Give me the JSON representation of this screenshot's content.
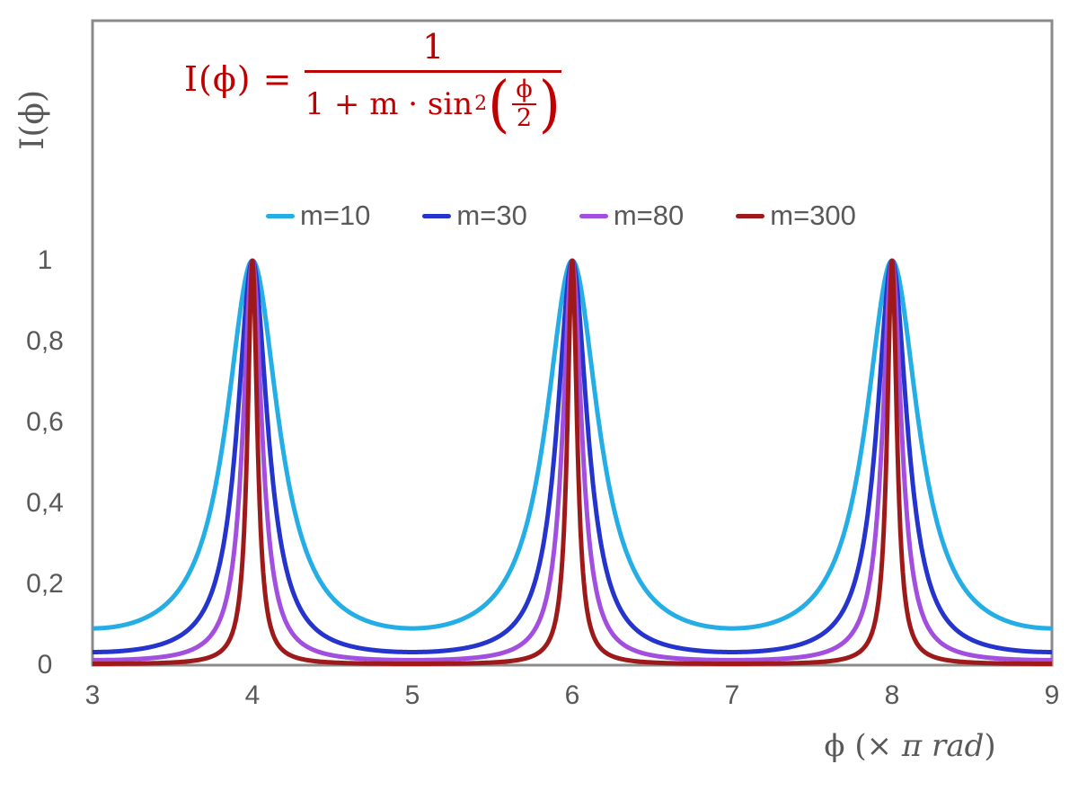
{
  "page": {
    "background": "#ffffff",
    "axis_color": "#8B8B8B",
    "text_color": "#595959"
  },
  "formula": {
    "lhs": "I(ϕ) =",
    "numerator": "1",
    "denominator_prefix": "1 + m · sin",
    "denominator_sup": "2",
    "paren_open": "(",
    "paren_close": ")",
    "inner_numerator": "ϕ",
    "inner_denominator": "2",
    "color": "#C00000"
  },
  "axes": {
    "x_title_pre": "ϕ  (× ",
    "x_title_italic": "π rad",
    "x_title_post": ")",
    "y_title": "I(ϕ)"
  },
  "chart_data": {
    "type": "line",
    "title": "Airy function / Fabry-Perot transmission curves",
    "function": "I(ϕ) = 1 / (1 + m · sin²(ϕ/2)), plotted vs ϕ in units of π rad",
    "xlabel": "ϕ (× π rad)",
    "ylabel": "I(ϕ)",
    "x_range": [
      3,
      9
    ],
    "x_ticks": [
      "3",
      "4",
      "5",
      "6",
      "7",
      "8",
      "9"
    ],
    "y_ticks": [
      {
        "value": 0,
        "label": "0"
      },
      {
        "value": 0.2,
        "label": "0,2"
      },
      {
        "value": 0.4,
        "label": "0,4"
      },
      {
        "value": 0.6,
        "label": "0,6"
      },
      {
        "value": 0.8,
        "label": "0,8"
      },
      {
        "value": 1,
        "label": "1"
      }
    ],
    "y_display_max": 1.6,
    "grid": false,
    "legend_position": "top-center",
    "series": [
      {
        "name": "m=10",
        "m": 10,
        "color": "#25AEE6",
        "peak_x": [
          4,
          6,
          8
        ],
        "peak_value": 1,
        "min_value": 0.0909
      },
      {
        "name": "m=30",
        "m": 30,
        "color": "#2434CC",
        "peak_x": [
          4,
          6,
          8
        ],
        "peak_value": 1,
        "min_value": 0.0323
      },
      {
        "name": "m=80",
        "m": 80,
        "color": "#A24FE0",
        "peak_x": [
          4,
          6,
          8
        ],
        "peak_value": 1,
        "min_value": 0.0123
      },
      {
        "name": "m=300",
        "m": 300,
        "color": "#9E1A1A",
        "peak_x": [
          4,
          6,
          8
        ],
        "peak_value": 1,
        "min_value": 0.0033
      }
    ]
  }
}
